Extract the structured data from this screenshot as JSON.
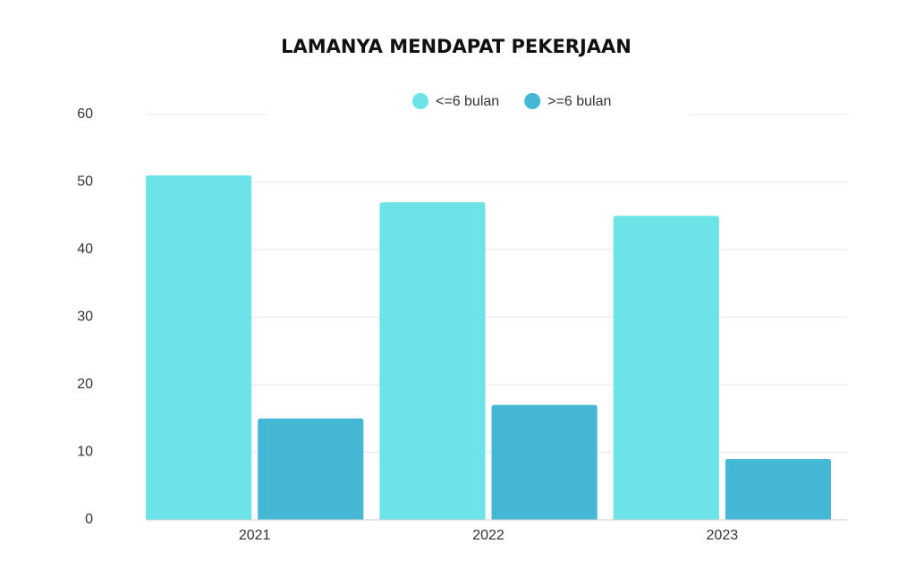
{
  "chart_data": {
    "type": "bar",
    "title": "LAMANYA MENDAPAT PEKERJAAN",
    "categories": [
      "2021",
      "2022",
      "2023"
    ],
    "series": [
      {
        "name": "<=6 bulan",
        "color": "#6ce3e6",
        "values": [
          51,
          47,
          45
        ]
      },
      {
        "name": ">=6 bulan",
        "color": "#44b7d4",
        "values": [
          15,
          17,
          9
        ]
      }
    ],
    "ylim": [
      0,
      60
    ],
    "yticks": [
      0,
      10,
      20,
      30,
      40,
      50,
      60
    ],
    "grid": true,
    "legend": "top"
  }
}
